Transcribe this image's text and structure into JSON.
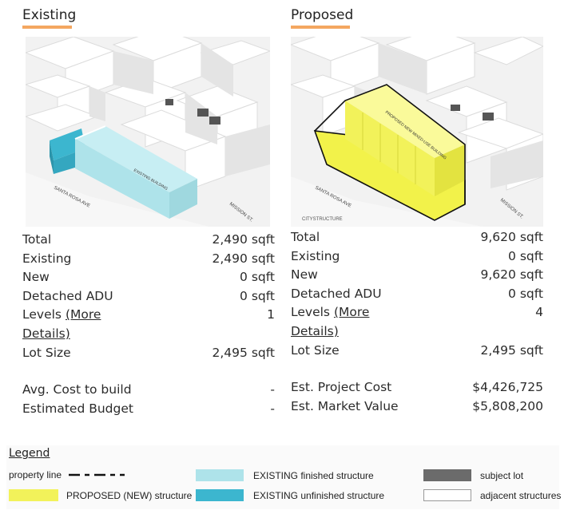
{
  "existing": {
    "title": "Existing",
    "render_labels": {
      "street1": "SANTA ROSA AVE",
      "street2": "MISSION ST.",
      "building": "EXISTING BUILDING"
    },
    "rows": {
      "total": {
        "label": "Total",
        "value": "2,490 sqft"
      },
      "existing": {
        "label": "Existing",
        "value": "2,490 sqft"
      },
      "new": {
        "label": "New",
        "value": "0 sqft"
      },
      "adu": {
        "label": "Detached ADU",
        "value": "0 sqft"
      },
      "levels": {
        "label": "Levels",
        "link": "(More",
        "link2": "Details)",
        "value": "1"
      },
      "lot": {
        "label": "Lot Size",
        "value": "2,495 sqft"
      },
      "cost": {
        "label": "Avg. Cost to build",
        "value": "-"
      },
      "budget": {
        "label": "Estimated Budget",
        "value": "-"
      }
    }
  },
  "proposed": {
    "title": "Proposed",
    "render_labels": {
      "street1": "SANTA ROSA AVE",
      "street2": "MISSION ST.",
      "building": "PROPOSED NEW MIXED-USE BUILDING",
      "watermark": "CITYSTRUCTURE"
    },
    "rows": {
      "total": {
        "label": "Total",
        "value": "9,620 sqft"
      },
      "existing": {
        "label": "Existing",
        "value": "0 sqft"
      },
      "new": {
        "label": "New",
        "value": "9,620 sqft"
      },
      "adu": {
        "label": "Detached ADU",
        "value": "0 sqft"
      },
      "levels": {
        "label": "Levels",
        "link": "(More",
        "link2": "Details)",
        "value": "4"
      },
      "lot": {
        "label": "Lot Size",
        "value": "2,495 sqft"
      },
      "cost": {
        "label": "Est. Project Cost",
        "value": "$4,426,725"
      },
      "market": {
        "label": "Est. Market Value",
        "value": "$5,808,200"
      }
    }
  },
  "legend": {
    "title": "Legend",
    "property_line": "property line",
    "proposed": "PROPOSED (NEW) structure",
    "existing_finished": "EXISTING finished structure",
    "existing_unfinished": "EXISTING unfinished structure",
    "subject_lot": "subject lot",
    "adjacent": "adjacent structures"
  },
  "colors": {
    "accent_underline": "#f4a760",
    "proposed_yellow": "#f2f25a",
    "existing_finished": "#aee3ea",
    "existing_unfinished": "#3cb6cf",
    "subject_lot": "#6b6b6b"
  }
}
